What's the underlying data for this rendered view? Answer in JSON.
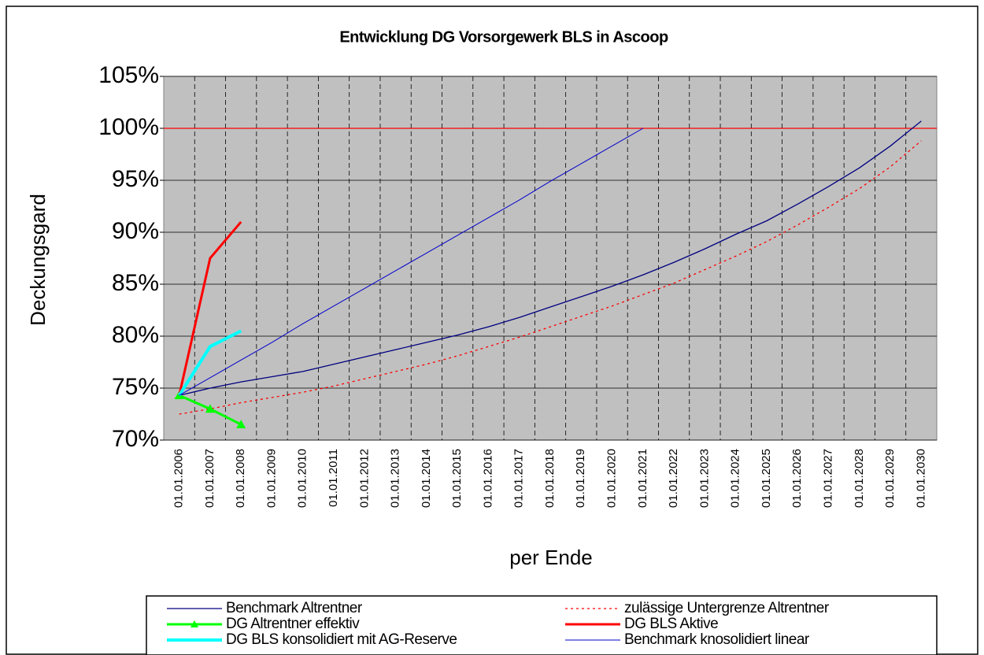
{
  "chart_data": {
    "type": "line",
    "title": "Entwicklung DG Vorsorgewerk BLS in Ascoop",
    "x_label": "per Ende",
    "y_label": "Deckungsgard",
    "categories": [
      "01.01.2006",
      "01.01.2007",
      "01.01.2008",
      "01.01.2009",
      "01.01.2010",
      "01.01.2011",
      "01.01.2012",
      "01.01.2013",
      "01.01.2014",
      "01.01.2015",
      "01.01.2016",
      "01.01.2017",
      "01.01.2018",
      "01.01.2019",
      "01.01.2020",
      "01.01.2021",
      "01.01.2022",
      "01.01.2023",
      "01.01.2024",
      "01.01.2025",
      "01.01.2026",
      "01.01.2027",
      "01.01.2028",
      "01.01.2029",
      "01.01.2030"
    ],
    "ylim": [
      70,
      105
    ],
    "yticks": [
      {
        "value": 70,
        "label": "70%"
      },
      {
        "value": 75,
        "label": "75%"
      },
      {
        "value": 80,
        "label": "80%"
      },
      {
        "value": 85,
        "label": "85%"
      },
      {
        "value": 90,
        "label": "90%"
      },
      {
        "value": 95,
        "label": "95%"
      },
      {
        "value": 100,
        "label": "100%"
      },
      {
        "value": 105,
        "label": "105%"
      }
    ],
    "grid": true,
    "reference_line": {
      "value": 100,
      "color": "#ff0000"
    },
    "series": [
      {
        "name": "Benchmark Altrentner",
        "color": "#000080",
        "width": 1.3,
        "dash": "solid",
        "values": [
          74.3,
          75.0,
          75.6,
          76.1,
          76.6,
          77.3,
          78.0,
          78.7,
          79.4,
          80.1,
          80.9,
          81.8,
          82.8,
          83.8,
          84.8,
          85.9,
          87.1,
          88.4,
          89.8,
          91.1,
          92.7,
          94.4,
          96.2,
          98.3,
          100.7
        ]
      },
      {
        "name": "zulässige Untergrenze Altrentner",
        "color": "#ff0000",
        "width": 1.3,
        "dash": "dotted",
        "values": [
          72.5,
          73.0,
          73.6,
          74.1,
          74.6,
          75.2,
          75.9,
          76.6,
          77.3,
          78.1,
          79.0,
          79.9,
          80.9,
          81.9,
          82.9,
          84.0,
          85.1,
          86.4,
          87.7,
          89.1,
          90.7,
          92.4,
          94.2,
          96.3,
          98.8
        ]
      },
      {
        "name": "DG Altrentner effektiv",
        "color": "#00ff00",
        "width": 3,
        "dash": "solid",
        "marker": "triangle",
        "values": [
          74.3,
          73.0,
          71.5,
          null,
          null,
          null,
          null,
          null,
          null,
          null,
          null,
          null,
          null,
          null,
          null,
          null,
          null,
          null,
          null,
          null,
          null,
          null,
          null,
          null,
          null
        ]
      },
      {
        "name": "DG BLS Aktive",
        "color": "#ff0000",
        "width": 3,
        "dash": "solid",
        "values": [
          74.3,
          87.5,
          91.0,
          null,
          null,
          null,
          null,
          null,
          null,
          null,
          null,
          null,
          null,
          null,
          null,
          null,
          null,
          null,
          null,
          null,
          null,
          null,
          null,
          null,
          null
        ]
      },
      {
        "name": "DG BLS konsolidiert mit AG-Reserve",
        "color": "#00ffff",
        "width": 4,
        "dash": "solid",
        "values": [
          74.3,
          79.0,
          80.5,
          null,
          null,
          null,
          null,
          null,
          null,
          null,
          null,
          null,
          null,
          null,
          null,
          null,
          null,
          null,
          null,
          null,
          null,
          null,
          null,
          null,
          null
        ]
      },
      {
        "name": "Benchmark knosolidiert linear",
        "color": "#0000cc",
        "width": 1,
        "dash": "solid",
        "values": [
          74.3,
          76.0,
          77.7,
          79.4,
          81.2,
          82.9,
          84.6,
          86.3,
          88.0,
          89.7,
          91.4,
          93.1,
          94.9,
          96.6,
          98.3,
          100.0,
          null,
          null,
          null,
          null,
          null,
          null,
          null,
          null,
          null
        ]
      }
    ]
  }
}
